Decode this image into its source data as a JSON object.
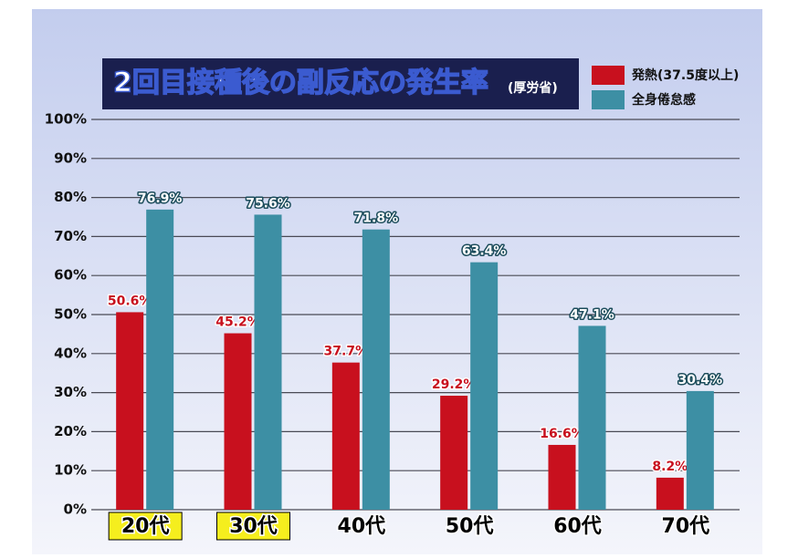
{
  "chart_data": {
    "type": "bar",
    "title": "2回目接種後の副反応の発生率",
    "subtitle": "(厚労省)",
    "categories": [
      "20代",
      "30代",
      "40代",
      "50代",
      "60代",
      "70代"
    ],
    "category_highlight": [
      true,
      true,
      false,
      false,
      false,
      false
    ],
    "series": [
      {
        "name": "発熱(37.5度以上)",
        "color": "#c8101e",
        "values": [
          50.6,
          45.2,
          37.7,
          29.2,
          16.6,
          8.2
        ],
        "value_labels": [
          "50.6%",
          "45.2%",
          "37.7%",
          "29.2%",
          "16.6%",
          "8.2%"
        ]
      },
      {
        "name": "全身倦怠感",
        "color": "#3d8fa4",
        "values": [
          76.9,
          75.6,
          71.8,
          63.4,
          47.1,
          30.4
        ],
        "value_labels": [
          "76.9%",
          "75.6%",
          "71.8%",
          "63.4%",
          "47.1%",
          "30.4%"
        ]
      }
    ],
    "ylim": [
      0,
      100
    ],
    "yticks": [
      {
        "value": 0,
        "label": "0%"
      },
      {
        "value": 10,
        "label": "10%"
      },
      {
        "value": 20,
        "label": "20%"
      },
      {
        "value": 30,
        "label": "30%"
      },
      {
        "value": 40,
        "label": "40%"
      },
      {
        "value": 50,
        "label": "50%"
      },
      {
        "value": 60,
        "label": "60%"
      },
      {
        "value": 70,
        "label": "70%"
      },
      {
        "value": 80,
        "label": "80%"
      },
      {
        "value": 90,
        "label": "90%"
      },
      {
        "value": 100,
        "label": "100%"
      }
    ],
    "grid": true,
    "legend": "top-right"
  }
}
